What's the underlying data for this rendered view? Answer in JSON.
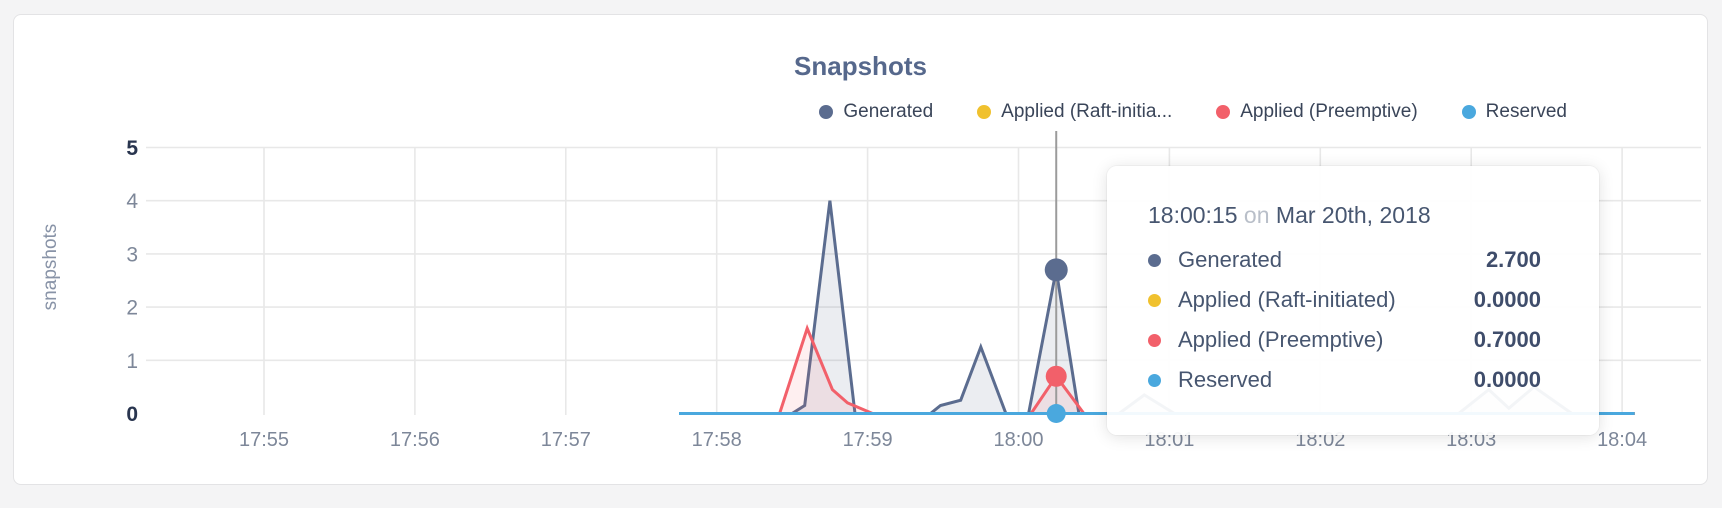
{
  "chart": {
    "title": "Snapshots",
    "ylabel": "snapshots",
    "legend": [
      {
        "label": "Generated",
        "color": "#5b6c8f"
      },
      {
        "label": "Applied (Raft-initia...",
        "color": "#f0c12e"
      },
      {
        "label": "Applied (Preemptive)",
        "color": "#f2606a"
      },
      {
        "label": "Reserved",
        "color": "#4aa8de"
      }
    ]
  },
  "chart_data": {
    "type": "area",
    "title": "Snapshots",
    "ylabel": "snapshots",
    "xlabel": "",
    "x_ticks": [
      "17:55",
      "17:56",
      "17:57",
      "17:58",
      "17:59",
      "18:00",
      "18:01",
      "18:02",
      "18:03",
      "18:04"
    ],
    "y_ticks": [
      0,
      1,
      2,
      3,
      4,
      5
    ],
    "ylim": [
      0,
      5
    ],
    "grid": true,
    "legend_position": "top-right",
    "series": [
      {
        "name": "Generated",
        "color": "#5b6c8f",
        "fill_opacity": 0.12,
        "points": [
          [
            "17:57:45",
            0
          ],
          [
            "17:58:30",
            0
          ],
          [
            "17:58:35",
            0.15
          ],
          [
            "17:58:45",
            4.0
          ],
          [
            "17:58:55",
            0
          ],
          [
            "17:59:25",
            0
          ],
          [
            "17:59:29",
            0.15
          ],
          [
            "17:59:37",
            0.25
          ],
          [
            "17:59:45",
            1.25
          ],
          [
            "17:59:55",
            0
          ],
          [
            "18:00:04",
            0
          ],
          [
            "18:00:15",
            2.7
          ],
          [
            "18:00:24",
            0
          ],
          [
            "18:00:40",
            0
          ],
          [
            "18:00:50",
            0.35
          ],
          [
            "18:01:02",
            0
          ],
          [
            "18:02:55",
            0
          ],
          [
            "18:03:07",
            0.45
          ],
          [
            "18:03:15",
            0.1
          ],
          [
            "18:03:25",
            0.5
          ],
          [
            "18:03:40",
            0
          ],
          [
            "18:04:05",
            0
          ]
        ]
      },
      {
        "name": "Applied (Raft-initiated)",
        "color": "#f0c12e",
        "fill_opacity": 0.1,
        "points": [
          [
            "17:57:45",
            0
          ],
          [
            "18:04:05",
            0
          ]
        ]
      },
      {
        "name": "Applied (Preemptive)",
        "color": "#f2606a",
        "fill_opacity": 0.1,
        "points": [
          [
            "17:57:45",
            0
          ],
          [
            "17:58:25",
            0
          ],
          [
            "17:58:36",
            1.6
          ],
          [
            "17:58:46",
            0.45
          ],
          [
            "17:58:52",
            0.2
          ],
          [
            "17:59:02",
            0
          ],
          [
            "18:00:05",
            0
          ],
          [
            "18:00:15",
            0.7
          ],
          [
            "18:00:26",
            0
          ],
          [
            "18:04:05",
            0
          ]
        ]
      },
      {
        "name": "Reserved",
        "color": "#4aa8de",
        "fill_opacity": 0.1,
        "points": [
          [
            "17:57:45",
            0
          ],
          [
            "18:04:05",
            0
          ]
        ]
      }
    ],
    "hover": {
      "time": "18:00:15",
      "line_color": "#9b9b9b",
      "markers": [
        {
          "series": "Generated",
          "value": 2.7,
          "color": "#5b6c8f"
        },
        {
          "series": "Applied (Preemptive)",
          "value": 0.7,
          "color": "#f2606a"
        },
        {
          "series": "Reserved",
          "value": 0,
          "color": "#4aa8de"
        }
      ]
    }
  },
  "tooltip": {
    "time": "18:00:15",
    "on_word": "on",
    "date": "Mar 20th, 2018",
    "rows": [
      {
        "label": "Generated",
        "value": "2.700",
        "color": "#5b6c8f"
      },
      {
        "label": "Applied (Raft-initiated)",
        "value": "0.0000",
        "color": "#f0c12e"
      },
      {
        "label": "Applied (Preemptive)",
        "value": "0.7000",
        "color": "#f2606a"
      },
      {
        "label": "Reserved",
        "value": "0.0000",
        "color": "#4aa8de"
      }
    ]
  },
  "colors": {
    "grid": "#e8e8e8",
    "tick_gray": "#7d8799",
    "tick_bold": "#29354f",
    "axis_label": "#8893a7",
    "title": "#56688c"
  }
}
